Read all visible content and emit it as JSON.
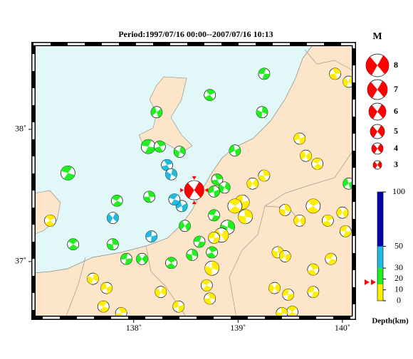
{
  "map_data": {
    "title": "Period:1997/07/16 00:00--2007/07/16 10:13",
    "xlim": [
      137.04,
      140.11
    ],
    "ylim": [
      36.575,
      38.645
    ],
    "xticks": [
      {
        "value": 138,
        "label": "138˚"
      },
      {
        "value": 139,
        "label": "139˚"
      },
      {
        "value": 140,
        "label": "140˚"
      }
    ],
    "yticks": [
      {
        "value": 37,
        "label": "37˚"
      },
      {
        "value": 38,
        "label": "38˚"
      }
    ],
    "legend": {
      "title": "M",
      "magnitudes": [
        8,
        7,
        6,
        5,
        4,
        3
      ],
      "color": "#ff0000"
    },
    "depth_scale": {
      "label": "Depth(km)",
      "lim": [
        0,
        100
      ],
      "ticks": [
        0,
        10,
        20,
        30,
        50,
        100
      ],
      "bands": [
        {
          "from": 0,
          "to": 15,
          "color": "#ffee00"
        },
        {
          "from": 15,
          "to": 30,
          "color": "#22ee22"
        },
        {
          "from": 30,
          "to": 50,
          "color": "#22bbdd"
        },
        {
          "from": 50,
          "to": 100,
          "color": "#0000aa"
        }
      ]
    },
    "main_shock": {
      "lon": 138.58,
      "lat": 37.54,
      "mag": 6.8,
      "depth": 17,
      "color": "#ff0000"
    },
    "events": [
      {
        "lon": 139.25,
        "lat": 38.42,
        "mag": 4,
        "depth": 20
      },
      {
        "lon": 138.73,
        "lat": 38.26,
        "mag": 4,
        "depth": 20
      },
      {
        "lon": 139.23,
        "lat": 38.13,
        "mag": 4,
        "depth": 20
      },
      {
        "lon": 138.22,
        "lat": 38.13,
        "mag": 4,
        "depth": 20
      },
      {
        "lon": 138.14,
        "lat": 37.87,
        "mag": 5,
        "depth": 20
      },
      {
        "lon": 138.25,
        "lat": 37.87,
        "mag": 4,
        "depth": 20
      },
      {
        "lon": 138.44,
        "lat": 37.83,
        "mag": 4,
        "depth": 20
      },
      {
        "lon": 138.97,
        "lat": 37.84,
        "mag": 4,
        "depth": 20
      },
      {
        "lon": 137.37,
        "lat": 37.67,
        "mag": 5,
        "depth": 20
      },
      {
        "lon": 138.8,
        "lat": 37.62,
        "mag": 4,
        "depth": 20
      },
      {
        "lon": 138.87,
        "lat": 37.56,
        "mag": 4,
        "depth": 20
      },
      {
        "lon": 138.77,
        "lat": 37.53,
        "mag": 4,
        "depth": 20
      },
      {
        "lon": 137.84,
        "lat": 37.46,
        "mag": 4,
        "depth": 20
      },
      {
        "lon": 138.15,
        "lat": 37.49,
        "mag": 4,
        "depth": 20
      },
      {
        "lon": 137.8,
        "lat": 37.33,
        "mag": 4,
        "depth": 35
      },
      {
        "lon": 138.17,
        "lat": 37.19,
        "mag": 4,
        "depth": 35
      },
      {
        "lon": 137.42,
        "lat": 37.13,
        "mag": 4,
        "depth": 20
      },
      {
        "lon": 137.8,
        "lat": 37.13,
        "mag": 4,
        "depth": 20
      },
      {
        "lon": 138.08,
        "lat": 37.02,
        "mag": 4,
        "depth": 20
      },
      {
        "lon": 137.93,
        "lat": 37.02,
        "mag": 4,
        "depth": 20
      },
      {
        "lon": 138.36,
        "lat": 36.99,
        "mag": 4,
        "depth": 20
      },
      {
        "lon": 138.56,
        "lat": 37.05,
        "mag": 4,
        "depth": 20
      },
      {
        "lon": 138.49,
        "lat": 37.27,
        "mag": 4,
        "depth": 20
      },
      {
        "lon": 138.63,
        "lat": 37.15,
        "mag": 4,
        "depth": 20
      },
      {
        "lon": 138.75,
        "lat": 37.07,
        "mag": 4,
        "depth": 20
      },
      {
        "lon": 138.9,
        "lat": 37.26,
        "mag": 5,
        "depth": 20
      },
      {
        "lon": 140.06,
        "lat": 37.59,
        "mag": 4,
        "depth": 20
      },
      {
        "lon": 138.77,
        "lat": 37.35,
        "mag": 4,
        "depth": 20
      },
      {
        "lon": 138.32,
        "lat": 37.73,
        "mag": 4,
        "depth": 35
      },
      {
        "lon": 138.36,
        "lat": 37.66,
        "mag": 4,
        "depth": 35
      },
      {
        "lon": 138.46,
        "lat": 37.42,
        "mag": 4,
        "depth": 35
      },
      {
        "lon": 138.39,
        "lat": 37.47,
        "mag": 4,
        "depth": 35
      },
      {
        "lon": 139.93,
        "lat": 38.42,
        "mag": 4,
        "depth": 8
      },
      {
        "lon": 140.06,
        "lat": 38.36,
        "mag": 4,
        "depth": 8
      },
      {
        "lon": 139.59,
        "lat": 37.93,
        "mag": 4,
        "depth": 8
      },
      {
        "lon": 139.76,
        "lat": 37.74,
        "mag": 4,
        "depth": 8
      },
      {
        "lon": 139.25,
        "lat": 37.65,
        "mag": 4,
        "depth": 8
      },
      {
        "lon": 139.14,
        "lat": 37.59,
        "mag": 4,
        "depth": 8
      },
      {
        "lon": 139.04,
        "lat": 37.45,
        "mag": 5,
        "depth": 8
      },
      {
        "lon": 138.97,
        "lat": 37.42,
        "mag": 5,
        "depth": 8
      },
      {
        "lon": 139.07,
        "lat": 37.34,
        "mag": 5,
        "depth": 8
      },
      {
        "lon": 138.84,
        "lat": 37.2,
        "mag": 5,
        "depth": 8
      },
      {
        "lon": 138.77,
        "lat": 37.18,
        "mag": 4,
        "depth": 8
      },
      {
        "lon": 139.72,
        "lat": 37.42,
        "mag": 5,
        "depth": 8
      },
      {
        "lon": 139.45,
        "lat": 37.39,
        "mag": 4,
        "depth": 8
      },
      {
        "lon": 140.0,
        "lat": 37.37,
        "mag": 4,
        "depth": 8
      },
      {
        "lon": 140.03,
        "lat": 37.23,
        "mag": 4,
        "depth": 8
      },
      {
        "lon": 139.86,
        "lat": 37.31,
        "mag": 4,
        "depth": 8
      },
      {
        "lon": 139.38,
        "lat": 37.07,
        "mag": 4,
        "depth": 8
      },
      {
        "lon": 139.45,
        "lat": 37.04,
        "mag": 4,
        "depth": 8
      },
      {
        "lon": 139.89,
        "lat": 37.02,
        "mag": 4,
        "depth": 8
      },
      {
        "lon": 139.72,
        "lat": 36.94,
        "mag": 4,
        "depth": 8
      },
      {
        "lon": 137.61,
        "lat": 36.87,
        "mag": 4,
        "depth": 8
      },
      {
        "lon": 137.74,
        "lat": 36.8,
        "mag": 4,
        "depth": 8
      },
      {
        "lon": 137.71,
        "lat": 36.66,
        "mag": 4,
        "depth": 8
      },
      {
        "lon": 137.88,
        "lat": 36.61,
        "mag": 4,
        "depth": 8
      },
      {
        "lon": 138.26,
        "lat": 36.77,
        "mag": 4,
        "depth": 8
      },
      {
        "lon": 138.43,
        "lat": 36.66,
        "mag": 4,
        "depth": 8
      },
      {
        "lon": 138.7,
        "lat": 36.82,
        "mag": 4,
        "depth": 8
      },
      {
        "lon": 138.73,
        "lat": 36.72,
        "mag": 4,
        "depth": 8
      },
      {
        "lon": 139.35,
        "lat": 36.8,
        "mag": 4,
        "depth": 8
      },
      {
        "lon": 139.48,
        "lat": 36.75,
        "mag": 4,
        "depth": 8
      },
      {
        "lon": 139.52,
        "lat": 36.62,
        "mag": 4,
        "depth": 8
      },
      {
        "lon": 139.42,
        "lat": 36.61,
        "mag": 4,
        "depth": 8
      },
      {
        "lon": 139.59,
        "lat": 37.31,
        "mag": 4,
        "depth": 8
      },
      {
        "lon": 139.72,
        "lat": 36.77,
        "mag": 4,
        "depth": 8
      },
      {
        "lon": 137.2,
        "lat": 37.31,
        "mag": 4,
        "depth": 8
      },
      {
        "lon": 138.75,
        "lat": 36.95,
        "mag": 5,
        "depth": 8
      },
      {
        "lon": 139.65,
        "lat": 37.8,
        "mag": 4,
        "depth": 8
      }
    ]
  }
}
